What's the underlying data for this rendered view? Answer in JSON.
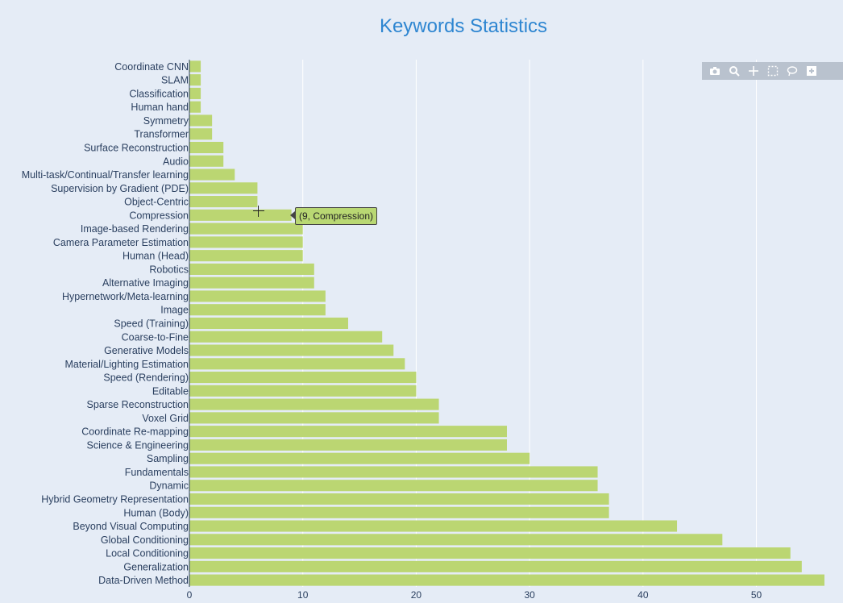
{
  "chart_data": {
    "type": "bar",
    "orientation": "horizontal",
    "title": "Keywords Statistics",
    "xlabel": "",
    "ylabel": "",
    "xlim": [
      0,
      56.5
    ],
    "xticks": [
      0,
      10,
      20,
      30,
      40,
      50
    ],
    "bar_color": "#bbd672",
    "background_color": "#e5ecf6",
    "title_color": "#2e86d1",
    "categories": [
      "Coordinate CNN",
      "SLAM",
      "Classification",
      "Human hand",
      "Symmetry",
      "Transformer",
      "Surface Reconstruction",
      "Audio",
      "Multi-task/Continual/Transfer learning",
      "Supervision by Gradient (PDE)",
      "Object-Centric",
      "Compression",
      "Image-based Rendering",
      "Camera Parameter Estimation",
      "Human (Head)",
      "Robotics",
      "Alternative Imaging",
      "Hypernetwork/Meta-learning",
      "Image",
      "Speed (Training)",
      "Coarse-to-Fine",
      "Generative Models",
      "Material/Lighting Estimation",
      "Speed (Rendering)",
      "Editable",
      "Sparse Reconstruction",
      "Voxel Grid",
      "Coordinate Re-mapping",
      "Science & Engineering",
      "Sampling",
      "Fundamentals",
      "Dynamic",
      "Hybrid Geometry Representation",
      "Human (Body)",
      "Beyond Visual Computing",
      "Global Conditioning",
      "Local Conditioning",
      "Generalization",
      "Data-Driven Method"
    ],
    "values": [
      1,
      1,
      1,
      1,
      2,
      2,
      3,
      3,
      4,
      6,
      6,
      9,
      10,
      10,
      10,
      11,
      11,
      12,
      12,
      14,
      17,
      18,
      19,
      20,
      20,
      22,
      22,
      28,
      28,
      30,
      36,
      36,
      37,
      37,
      43,
      47,
      53,
      54,
      56
    ],
    "hover": {
      "text": "(9, Compression)"
    }
  },
  "modebar": {
    "icons": [
      "camera-icon",
      "zoom-icon",
      "pan-icon",
      "box-select-icon",
      "lasso-icon",
      "zoom-in-icon"
    ]
  }
}
